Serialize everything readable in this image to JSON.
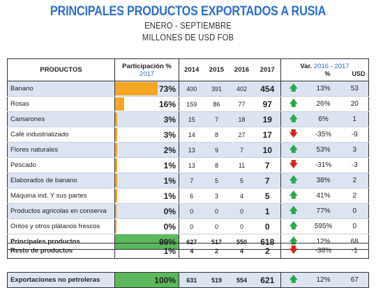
{
  "header": {
    "title": "PRINCIPALES PRODUCTOS EXPORTADOS A RUSIA",
    "subtitle1": "ENERO - SEPTIEMBRE",
    "subtitle2": "MILLONES DE USD FOB"
  },
  "columns": {
    "productos": "PRODUCTOS",
    "participacion": "Participación %",
    "participacion_year": "2017",
    "y2014": "2014",
    "y2015": "2015",
    "y2016": "2016",
    "y2017": "2017",
    "var_label": "Var.",
    "var_period": "2016 - 2017",
    "var_pct": "%",
    "var_usd": "USD"
  },
  "rows": [
    {
      "producto": "Banano",
      "pct": "73%",
      "pct_value": 73,
      "y2014": "400",
      "y2015": "391",
      "y2016": "402",
      "y2017": "454",
      "trend": "up",
      "var_pct": "13%",
      "var_usd": "53",
      "shade": true
    },
    {
      "producto": "Rosas",
      "pct": "16%",
      "pct_value": 16,
      "y2014": "159",
      "y2015": "86",
      "y2016": "77",
      "y2017": "97",
      "trend": "up",
      "var_pct": "26%",
      "var_usd": "20",
      "shade": false
    },
    {
      "producto": "Camarones",
      "pct": "3%",
      "pct_value": 3,
      "y2014": "15",
      "y2015": "7",
      "y2016": "18",
      "y2017": "19",
      "trend": "up",
      "var_pct": "6%",
      "var_usd": "1",
      "shade": true
    },
    {
      "producto": "Café industrializado",
      "pct": "3%",
      "pct_value": 3,
      "y2014": "14",
      "y2015": "8",
      "y2016": "27",
      "y2017": "17",
      "trend": "down",
      "var_pct": "-35%",
      "var_usd": "-9",
      "shade": false
    },
    {
      "producto": "Flores naturales",
      "pct": "2%",
      "pct_value": 2,
      "y2014": "13",
      "y2015": "9",
      "y2016": "7",
      "y2017": "10",
      "trend": "up",
      "var_pct": "53%",
      "var_usd": "3",
      "shade": true
    },
    {
      "producto": "Pescado",
      "pct": "1%",
      "pct_value": 1,
      "y2014": "13",
      "y2015": "8",
      "y2016": "11",
      "y2017": "7",
      "trend": "down",
      "var_pct": "-31%",
      "var_usd": "-3",
      "shade": false
    },
    {
      "producto": "Elaborados de banano",
      "pct": "1%",
      "pct_value": 1,
      "y2014": "7",
      "y2015": "5",
      "y2016": "5",
      "y2017": "7",
      "trend": "up",
      "var_pct": "38%",
      "var_usd": "2",
      "shade": true
    },
    {
      "producto": "Máquina ind. Y sus partes",
      "pct": "1%",
      "pct_value": 1,
      "y2014": "6",
      "y2015": "3",
      "y2016": "4",
      "y2017": "5",
      "trend": "up",
      "var_pct": "41%",
      "var_usd": "2",
      "shade": false
    },
    {
      "producto": "Productos agricolas en conserva",
      "pct": "0%",
      "pct_value": 0,
      "y2014": "0",
      "y2015": "0",
      "y2016": "0",
      "y2017": "1",
      "trend": "up",
      "var_pct": "77%",
      "var_usd": "0",
      "shade": true
    },
    {
      "producto": "Oritos y otros plátanos frescos",
      "pct": "0%",
      "pct_value": 0,
      "y2014": "0",
      "y2015": "0",
      "y2016": "0",
      "y2017": "0",
      "trend": "up",
      "var_pct": "595%",
      "var_usd": "0",
      "shade": false
    }
  ],
  "total": {
    "producto": "Principales productos",
    "pct": "99%",
    "y2014": "627",
    "y2015": "517",
    "y2016": "550",
    "y2017": "618",
    "trend": "up",
    "var_pct": "12%",
    "var_usd": "68"
  },
  "rest": {
    "producto": "Resto de productos",
    "pct": "1%",
    "y2014": "4",
    "y2015": "2",
    "y2016": "4",
    "y2017": "2",
    "trend": "down",
    "var_pct": "-38%",
    "var_usd": "-1"
  },
  "exports": {
    "producto": "Exportaciones no petroleras",
    "pct": "100%",
    "y2014": "631",
    "y2015": "519",
    "y2016": "554",
    "y2017": "621",
    "trend": "up",
    "var_pct": "12%",
    "var_usd": "67"
  },
  "colors": {
    "title": "#2e6fc9",
    "bar": "#f5a623",
    "total_bar": "#5cb85c",
    "up": "#2aa84a",
    "down": "#d6231f",
    "shade": "#dce4f2"
  },
  "icons": {
    "up": "arrow-up-icon",
    "down": "arrow-down-icon"
  }
}
